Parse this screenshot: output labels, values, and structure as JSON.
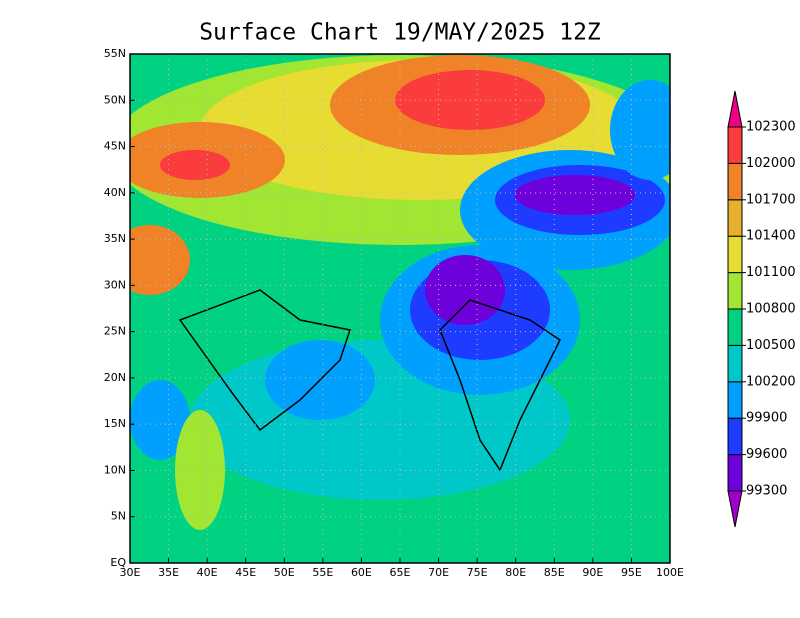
{
  "title": "Surface Chart 19/MAY/2025 12Z",
  "map": {
    "lonlim": [
      30,
      100
    ],
    "latlim": [
      0,
      55
    ],
    "grid": true,
    "lon_ticks": [
      {
        "value": 30,
        "label": "30E"
      },
      {
        "value": 35,
        "label": "35E"
      },
      {
        "value": 40,
        "label": "40E"
      },
      {
        "value": 45,
        "label": "45E"
      },
      {
        "value": 50,
        "label": "50E"
      },
      {
        "value": 55,
        "label": "55E"
      },
      {
        "value": 60,
        "label": "60E"
      },
      {
        "value": 65,
        "label": "65E"
      },
      {
        "value": 70,
        "label": "70E"
      },
      {
        "value": 75,
        "label": "75E"
      },
      {
        "value": 80,
        "label": "80E"
      },
      {
        "value": 85,
        "label": "85E"
      },
      {
        "value": 90,
        "label": "90E"
      },
      {
        "value": 95,
        "label": "95E"
      },
      {
        "value": 100,
        "label": "100E"
      }
    ],
    "lat_ticks": [
      {
        "value": 0,
        "label": "EQ"
      },
      {
        "value": 5,
        "label": "5N"
      },
      {
        "value": 10,
        "label": "10N"
      },
      {
        "value": 15,
        "label": "15N"
      },
      {
        "value": 20,
        "label": "20N"
      },
      {
        "value": 25,
        "label": "25N"
      },
      {
        "value": 30,
        "label": "30N"
      },
      {
        "value": 35,
        "label": "35N"
      },
      {
        "value": 40,
        "label": "40N"
      },
      {
        "value": 45,
        "label": "45N"
      },
      {
        "value": 50,
        "label": "50N"
      },
      {
        "value": 55,
        "label": "55N"
      }
    ]
  },
  "colorbar": {
    "levels": [
      99300,
      99600,
      99900,
      100200,
      100500,
      100800,
      101100,
      101400,
      101700,
      102000,
      102300
    ],
    "colors": [
      "#a000c8",
      "#6e00dc",
      "#1e3cff",
      "#00a0ff",
      "#00c8c8",
      "#00d282",
      "#a0e632",
      "#e6dc32",
      "#e6af2d",
      "#f08228",
      "#fa3c3c",
      "#f00082"
    ]
  }
}
